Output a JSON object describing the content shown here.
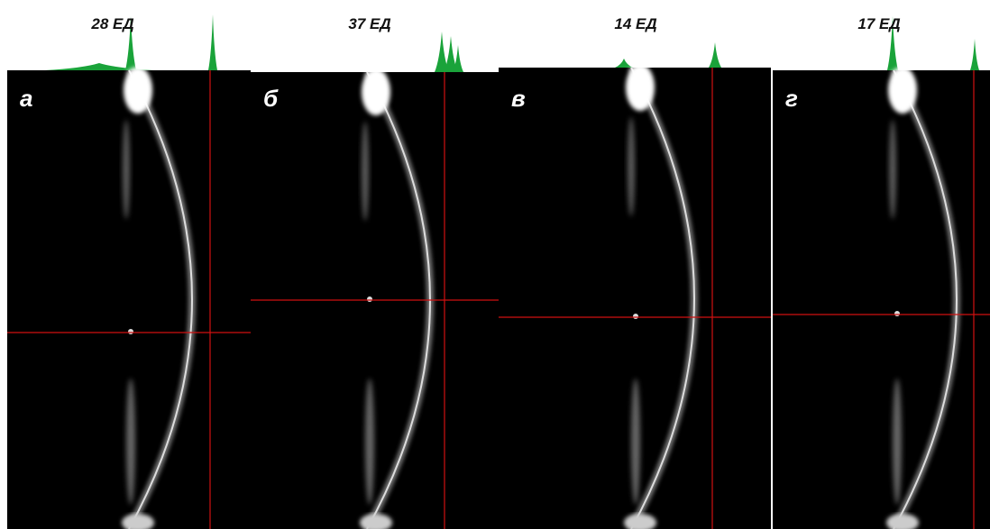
{
  "panels": [
    {
      "letter": "а",
      "label": "28 ЕД"
    },
    {
      "letter": "б",
      "label": "37 ЕД"
    },
    {
      "letter": "в",
      "label": "14 ЕД"
    },
    {
      "letter": "г",
      "label": "17 ЕД"
    }
  ]
}
